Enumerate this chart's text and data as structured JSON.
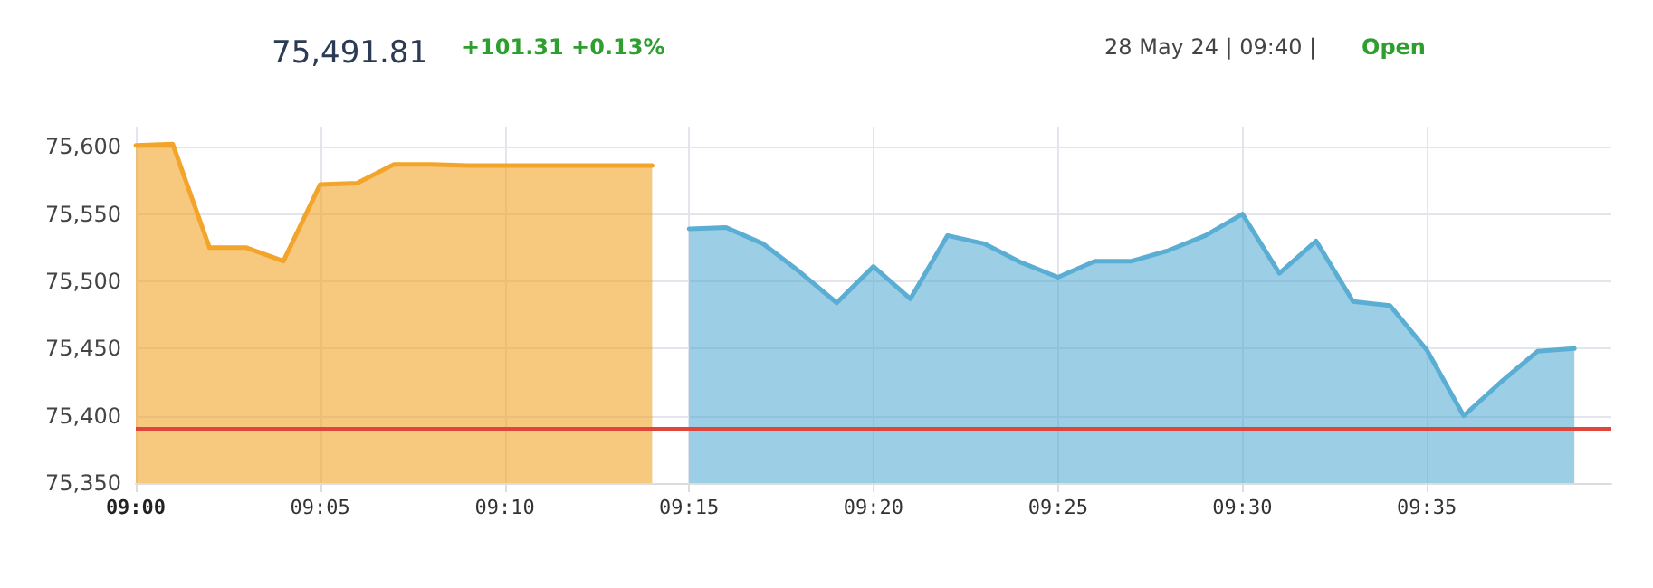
{
  "chart_data": {
    "type": "area",
    "title": "75,491.81",
    "annotations": [
      "+101.31 +0.13%",
      "28 May 24 | 09:40 |",
      "Open"
    ],
    "series": [
      {
        "color": "#f2a52a",
        "x": [
          9,
          9.0167,
          9.0333,
          9.05,
          9.0667,
          9.0833,
          9.1,
          9.1167,
          9.1333,
          9.15,
          9.1667,
          9.1833,
          9.2,
          9.2167,
          9.2333
        ],
        "values": [
          75601,
          75602,
          75525,
          75525,
          75515,
          75572,
          75573,
          75587,
          75587,
          75586,
          75586,
          75586,
          75586,
          75586,
          75586
        ]
      },
      {
        "color": "#5aaed4",
        "x": [
          9.25,
          9.2667,
          9.2833,
          9.3,
          9.3167,
          9.3333,
          9.35,
          9.3667,
          9.3833,
          9.4,
          9.4167,
          9.4333,
          9.45,
          9.4667,
          9.4833,
          9.5,
          9.5167,
          9.5333,
          9.55,
          9.5667,
          9.5833,
          9.6,
          9.6167,
          9.6333,
          9.65
        ],
        "values": [
          75539,
          75540,
          75528,
          75507,
          75484,
          75511,
          75487,
          75534,
          75528,
          75514,
          75503,
          75515,
          75515,
          75523,
          75534,
          75550,
          75506,
          75530,
          75485,
          75482,
          75449,
          75400,
          75425,
          75448,
          75450
        ]
      }
    ],
    "xlim": [
      9,
      9.6667
    ],
    "xticks": [
      {
        "value": 9,
        "label": "09:00"
      },
      {
        "value": 9.0833,
        "label": "09:05"
      },
      {
        "value": 9.1667,
        "label": "09:10"
      },
      {
        "value": 9.25,
        "label": "09:15"
      },
      {
        "value": 9.3333,
        "label": "09:20"
      },
      {
        "value": 9.4167,
        "label": "09:25"
      },
      {
        "value": 9.5,
        "label": "09:30"
      },
      {
        "value": 9.5833,
        "label": "09:35"
      }
    ],
    "ylim": [
      75350,
      75615
    ],
    "yticks": [
      {
        "value": 75350,
        "label": "75,350"
      },
      {
        "value": 75400,
        "label": "75,400"
      },
      {
        "value": 75450,
        "label": "75,450"
      },
      {
        "value": 75500,
        "label": "75,500"
      },
      {
        "value": 75550,
        "label": "75,550"
      },
      {
        "value": 75600,
        "label": "75,600"
      }
    ],
    "ref_lines": [
      {
        "axis": "y",
        "value": 75390.5,
        "color": "#e0443a"
      }
    ],
    "grid": true,
    "marker": "none",
    "line_style": "solid"
  }
}
